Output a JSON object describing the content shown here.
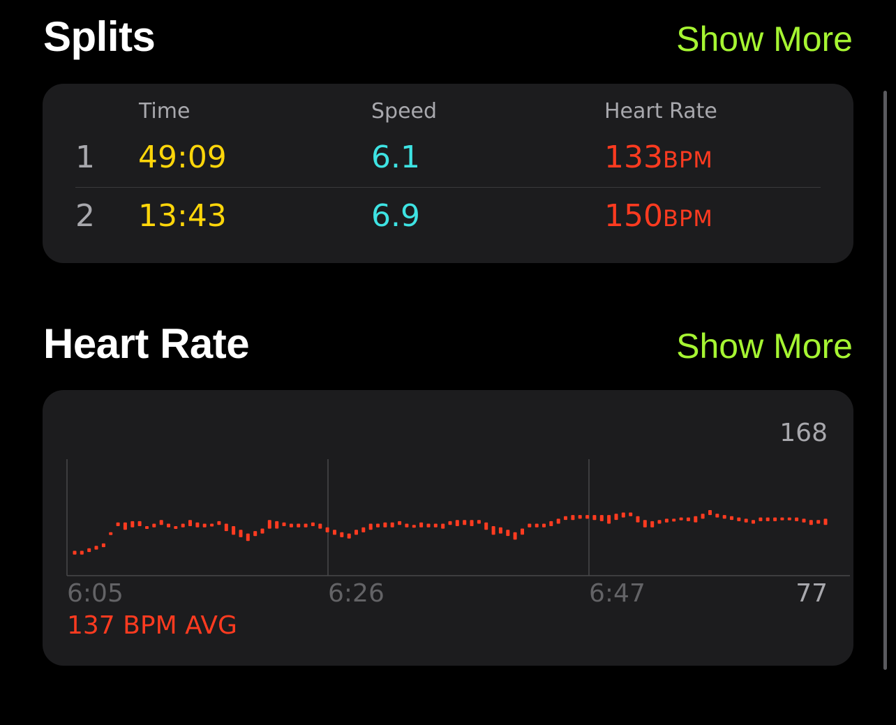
{
  "splits": {
    "title": "Splits",
    "show_more": "Show More",
    "columns": {
      "time": "Time",
      "speed": "Speed",
      "heart_rate": "Heart Rate"
    },
    "rows": [
      {
        "index": "1",
        "time": "49:09",
        "speed": "6.1",
        "hr_value": "133",
        "hr_unit": "BPM"
      },
      {
        "index": "2",
        "time": "13:43",
        "speed": "6.9",
        "hr_value": "150",
        "hr_unit": "BPM"
      }
    ]
  },
  "heart_rate": {
    "title": "Heart Rate",
    "show_more": "Show More",
    "avg_label": "137 BPM AVG"
  },
  "colors": {
    "accent": "#a6f532",
    "time": "#ffd60a",
    "speed": "#3ee3e3",
    "heart": "#ff3b20"
  },
  "chart_data": {
    "type": "bar",
    "x_ticks": [
      "6:05",
      "6:26",
      "6:47"
    ],
    "ymax_label": "168",
    "ymin_label": "77",
    "ylim": [
      77,
      168
    ],
    "grid": true,
    "series": [
      {
        "ranges": [
          [
            93,
            96
          ],
          [
            93,
            96
          ],
          [
            95,
            98
          ],
          [
            97,
            100
          ],
          [
            99,
            102
          ],
          [
            109,
            111
          ],
          [
            116,
            119
          ],
          [
            113,
            119
          ],
          [
            115,
            120
          ],
          [
            116,
            120
          ],
          [
            114,
            116
          ],
          [
            115,
            118
          ],
          [
            117,
            121
          ],
          [
            115,
            118
          ],
          [
            114,
            116
          ],
          [
            115,
            118
          ],
          [
            116,
            121
          ],
          [
            115,
            119
          ],
          [
            115,
            118
          ],
          [
            116,
            118
          ],
          [
            117,
            120
          ],
          [
            112,
            118
          ],
          [
            109,
            116
          ],
          [
            107,
            113
          ],
          [
            104,
            110
          ],
          [
            108,
            112
          ],
          [
            110,
            114
          ],
          [
            114,
            121
          ],
          [
            114,
            120
          ],
          [
            116,
            119
          ],
          [
            115,
            118
          ],
          [
            115,
            118
          ],
          [
            115,
            118
          ],
          [
            116,
            119
          ],
          [
            114,
            118
          ],
          [
            111,
            115
          ],
          [
            109,
            113
          ],
          [
            107,
            111
          ],
          [
            106,
            110
          ],
          [
            109,
            113
          ],
          [
            111,
            115
          ],
          [
            113,
            118
          ],
          [
            115,
            118
          ],
          [
            115,
            119
          ],
          [
            115,
            119
          ],
          [
            117,
            120
          ],
          [
            115,
            118
          ],
          [
            115,
            117
          ],
          [
            115,
            119
          ],
          [
            115,
            118
          ],
          [
            115,
            118
          ],
          [
            114,
            118
          ],
          [
            117,
            120
          ],
          [
            116,
            121
          ],
          [
            117,
            121
          ],
          [
            116,
            121
          ],
          [
            118,
            121
          ],
          [
            113,
            119
          ],
          [
            109,
            116
          ],
          [
            110,
            115
          ],
          [
            108,
            113
          ],
          [
            105,
            111
          ],
          [
            109,
            114
          ],
          [
            115,
            118
          ],
          [
            115,
            118
          ],
          [
            115,
            118
          ],
          [
            116,
            120
          ],
          [
            118,
            122
          ],
          [
            121,
            124
          ],
          [
            121,
            125
          ],
          [
            122,
            125
          ],
          [
            122,
            125
          ],
          [
            121,
            125
          ],
          [
            120,
            125
          ],
          [
            118,
            125
          ],
          [
            121,
            126
          ],
          [
            123,
            127
          ],
          [
            124,
            127
          ],
          [
            119,
            124
          ],
          [
            115,
            121
          ],
          [
            115,
            120
          ],
          [
            118,
            121
          ],
          [
            119,
            122
          ],
          [
            120,
            122
          ],
          [
            121,
            123
          ],
          [
            120,
            123
          ],
          [
            119,
            124
          ],
          [
            122,
            126
          ],
          [
            125,
            129
          ],
          [
            123,
            126
          ],
          [
            122,
            125
          ],
          [
            121,
            124
          ],
          [
            120,
            123
          ],
          [
            119,
            122
          ],
          [
            118,
            121
          ],
          [
            120,
            123
          ],
          [
            120,
            123
          ],
          [
            120,
            123
          ],
          [
            121,
            123
          ],
          [
            121,
            123
          ],
          [
            120,
            123
          ],
          [
            119,
            122
          ],
          [
            117,
            121
          ],
          [
            118,
            121
          ],
          [
            117,
            122
          ]
        ]
      }
    ]
  }
}
